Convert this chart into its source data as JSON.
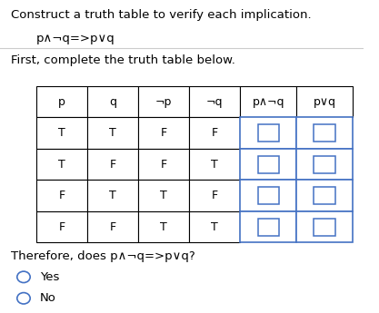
{
  "title_line1": "Construct a truth table to verify each implication.",
  "title_line2": "p∧¬q=>p∨q",
  "subtitle": "First, complete the truth table below.",
  "headers": [
    "p",
    "q",
    "¬p",
    "¬q",
    "p∧¬q",
    "p∨q"
  ],
  "rows": [
    [
      "T",
      "T",
      "F",
      "F",
      "",
      ""
    ],
    [
      "T",
      "F",
      "F",
      "T",
      "",
      ""
    ],
    [
      "F",
      "T",
      "T",
      "F",
      "",
      ""
    ],
    [
      "F",
      "F",
      "T",
      "T",
      "",
      ""
    ]
  ],
  "blank_cols": [
    4,
    5
  ],
  "blank_col_color": "#4472C4",
  "footer": "Therefore, does p∧¬q=>p∨q?",
  "options": [
    "Yes",
    "No"
  ],
  "bg_color": "#ffffff",
  "text_color": "#000000"
}
